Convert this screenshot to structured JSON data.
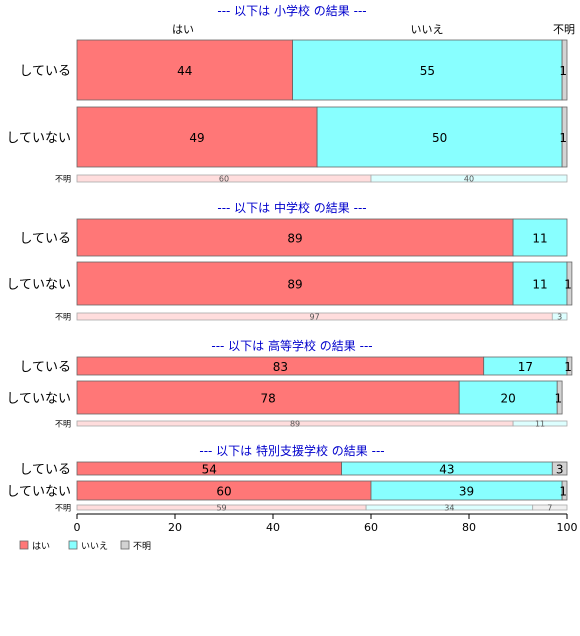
{
  "colors": {
    "yes": "#ff7777",
    "no": "#88ffff",
    "unknown": "#d3d3d3",
    "yes_light": "#ffdddd",
    "no_light": "#ddffff",
    "unknown_light": "#f0f0f0",
    "panel_title": "#0000cc"
  },
  "chart_data": {
    "type": "bar",
    "orientation": "horizontal-stacked-percent",
    "category_header": [
      "はい",
      "いいえ",
      "不明"
    ],
    "legend": [
      "はい",
      "いいえ",
      "不明"
    ],
    "legend_position": "bottom-left",
    "x_ticks": [
      "0",
      "20",
      "40",
      "60",
      "80",
      "100"
    ],
    "xlim": [
      0,
      100
    ],
    "grid": false,
    "panels": [
      {
        "title": "--- 以下は 小学校 の結果 ---",
        "rows": [
          {
            "label": "している",
            "values": [
              44,
              55,
              1
            ]
          },
          {
            "label": "していない",
            "values": [
              49,
              50,
              1
            ]
          },
          {
            "label": "不明",
            "values": [
              60,
              40,
              0
            ]
          }
        ]
      },
      {
        "title": "--- 以下は 中学校 の結果 ---",
        "rows": [
          {
            "label": "している",
            "values": [
              89,
              11,
              0
            ]
          },
          {
            "label": "していない",
            "values": [
              89,
              11,
              1
            ]
          },
          {
            "label": "不明",
            "values": [
              97,
              3,
              0
            ]
          }
        ]
      },
      {
        "title": "--- 以下は 高等学校 の結果 ---",
        "rows": [
          {
            "label": "している",
            "values": [
              83,
              17,
              1
            ]
          },
          {
            "label": "していない",
            "values": [
              78,
              20,
              1
            ]
          },
          {
            "label": "不明",
            "values": [
              89,
              11,
              0
            ]
          }
        ]
      },
      {
        "title": "--- 以下は 特別支援学校 の結果 ---",
        "rows": [
          {
            "label": "している",
            "values": [
              54,
              43,
              3
            ]
          },
          {
            "label": "していない",
            "values": [
              60,
              39,
              1
            ]
          },
          {
            "label": "不明",
            "values": [
              59,
              34,
              7
            ]
          }
        ]
      }
    ]
  }
}
